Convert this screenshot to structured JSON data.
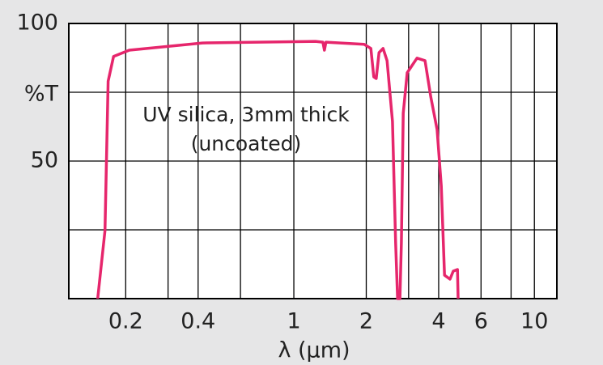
{
  "chart_data": {
    "type": "line",
    "annotations": [
      "UV silica, 3mm thick",
      "(uncoated)"
    ],
    "y_label": "%T",
    "x_label": "λ (µm)",
    "x_scale": "log",
    "x": [
      0.153,
      0.164,
      0.169,
      0.178,
      0.207,
      0.417,
      1.23,
      1.32,
      1.34,
      1.36,
      1.96,
      2.09,
      2.15,
      2.2,
      2.26,
      2.35,
      2.44,
      2.57,
      2.65,
      2.7,
      2.76,
      2.8,
      2.85,
      2.96,
      3.25,
      3.51,
      3.71,
      3.94,
      4.1,
      4.23,
      4.46,
      4.6,
      4.79,
      4.82
    ],
    "values": [
      0,
      24.7,
      79,
      88,
      90.3,
      92.9,
      93.5,
      93.2,
      90.3,
      93.2,
      92.4,
      90.9,
      80.6,
      80,
      89.4,
      90.9,
      86.5,
      64.4,
      20.3,
      0,
      0,
      20.3,
      67.4,
      82.1,
      87.4,
      86.5,
      73.2,
      61.5,
      40.9,
      8.5,
      7.1,
      10,
      10.6,
      0
    ],
    "color": "#e6266c",
    "xlim": [
      0.116,
      12.4
    ],
    "ylim": [
      0,
      100
    ],
    "xticks": [
      0.2,
      0.4,
      1,
      2,
      4,
      6,
      10
    ],
    "xgrid": [
      0.3,
      0.6,
      3,
      8
    ],
    "yticks": [
      50,
      100
    ],
    "ygrid": [
      25,
      75
    ],
    "grid": true
  }
}
